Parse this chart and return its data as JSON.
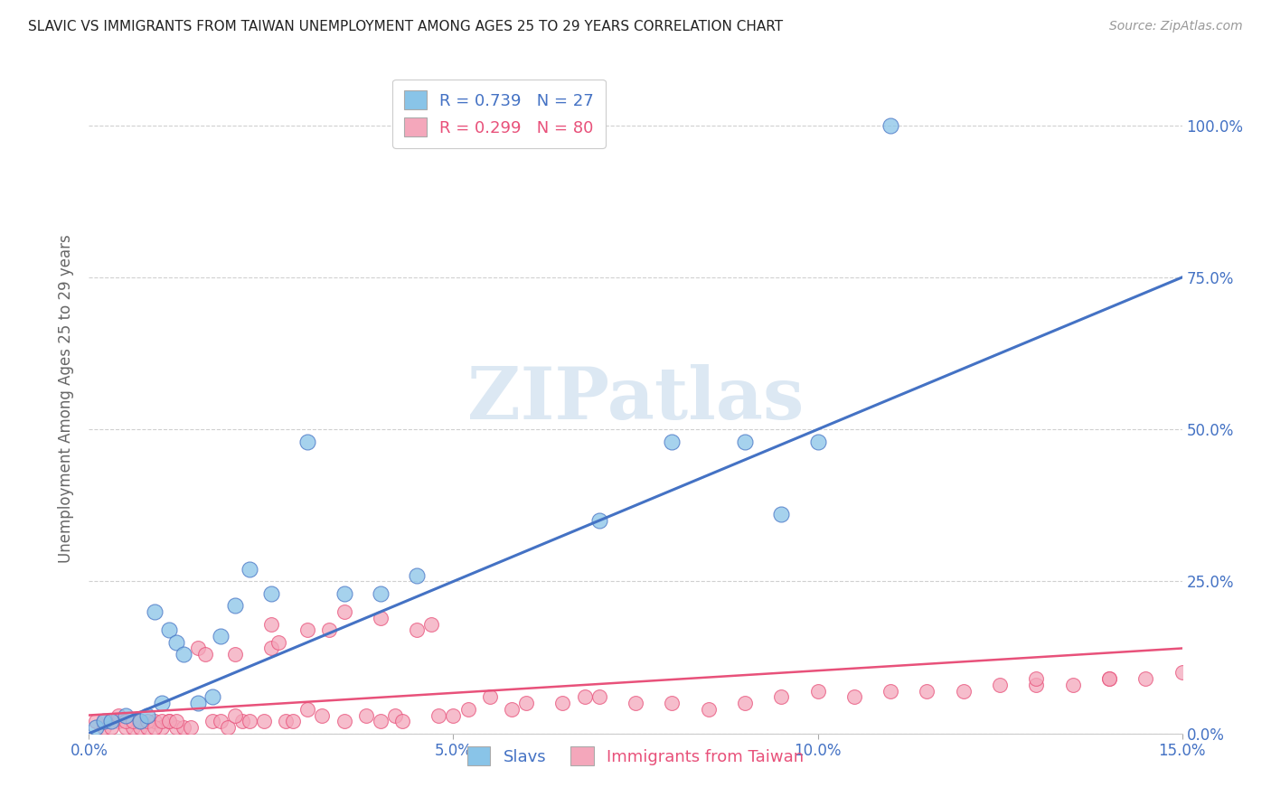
{
  "title": "SLAVIC VS IMMIGRANTS FROM TAIWAN UNEMPLOYMENT AMONG AGES 25 TO 29 YEARS CORRELATION CHART",
  "source": "Source: ZipAtlas.com",
  "ylabel": "Unemployment Among Ages 25 to 29 years",
  "x_min": 0.0,
  "x_max": 0.15,
  "y_min": 0.0,
  "y_max": 1.1,
  "x_ticks": [
    0.0,
    0.05,
    0.1,
    0.15
  ],
  "x_tick_labels": [
    "0.0%",
    "5.0%",
    "10.0%",
    "15.0%"
  ],
  "y_ticks": [
    0.0,
    0.25,
    0.5,
    0.75,
    1.0
  ],
  "y_tick_labels": [
    "0.0%",
    "25.0%",
    "50.0%",
    "75.0%",
    "100.0%"
  ],
  "slavs_color": "#89c4e8",
  "taiwan_color": "#f4a7bb",
  "slavs_line_color": "#4472c4",
  "taiwan_line_color": "#e8517a",
  "slavs_R": 0.739,
  "slavs_N": 27,
  "taiwan_R": 0.299,
  "taiwan_N": 80,
  "legend_label_slavs": "Slavs",
  "legend_label_taiwan": "Immigrants from Taiwan",
  "watermark_text": "ZIPatlas",
  "background_color": "#ffffff",
  "grid_color": "#d0d0d0",
  "slavs_x": [
    0.001,
    0.002,
    0.003,
    0.005,
    0.007,
    0.008,
    0.009,
    0.01,
    0.011,
    0.012,
    0.013,
    0.015,
    0.017,
    0.018,
    0.02,
    0.022,
    0.025,
    0.03,
    0.035,
    0.04,
    0.045,
    0.07,
    0.08,
    0.09,
    0.095,
    0.1,
    0.11
  ],
  "slavs_y": [
    0.01,
    0.02,
    0.02,
    0.03,
    0.02,
    0.03,
    0.2,
    0.05,
    0.17,
    0.15,
    0.13,
    0.05,
    0.06,
    0.16,
    0.21,
    0.27,
    0.23,
    0.48,
    0.23,
    0.23,
    0.26,
    0.35,
    0.48,
    0.48,
    0.36,
    0.48,
    1.0
  ],
  "taiwan_x": [
    0.001,
    0.002,
    0.003,
    0.004,
    0.005,
    0.006,
    0.007,
    0.008,
    0.009,
    0.01,
    0.011,
    0.012,
    0.013,
    0.014,
    0.015,
    0.016,
    0.017,
    0.018,
    0.019,
    0.02,
    0.021,
    0.022,
    0.024,
    0.025,
    0.026,
    0.027,
    0.028,
    0.03,
    0.032,
    0.033,
    0.035,
    0.038,
    0.04,
    0.042,
    0.043,
    0.045,
    0.047,
    0.048,
    0.05,
    0.052,
    0.055,
    0.058,
    0.06,
    0.065,
    0.068,
    0.07,
    0.075,
    0.08,
    0.085,
    0.09,
    0.095,
    0.1,
    0.105,
    0.11,
    0.115,
    0.12,
    0.125,
    0.13,
    0.135,
    0.14,
    0.145,
    0.15,
    0.002,
    0.003,
    0.004,
    0.005,
    0.006,
    0.007,
    0.008,
    0.009,
    0.01,
    0.011,
    0.012,
    0.02,
    0.025,
    0.03,
    0.035,
    0.04,
    0.13,
    0.14
  ],
  "taiwan_y": [
    0.02,
    0.01,
    0.02,
    0.02,
    0.01,
    0.01,
    0.01,
    0.01,
    0.02,
    0.01,
    0.02,
    0.01,
    0.01,
    0.01,
    0.14,
    0.13,
    0.02,
    0.02,
    0.01,
    0.13,
    0.02,
    0.02,
    0.02,
    0.14,
    0.15,
    0.02,
    0.02,
    0.04,
    0.03,
    0.17,
    0.02,
    0.03,
    0.02,
    0.03,
    0.02,
    0.17,
    0.18,
    0.03,
    0.03,
    0.04,
    0.06,
    0.04,
    0.05,
    0.05,
    0.06,
    0.06,
    0.05,
    0.05,
    0.04,
    0.05,
    0.06,
    0.07,
    0.06,
    0.07,
    0.07,
    0.07,
    0.08,
    0.08,
    0.08,
    0.09,
    0.09,
    0.1,
    0.02,
    0.01,
    0.03,
    0.02,
    0.02,
    0.02,
    0.02,
    0.01,
    0.02,
    0.02,
    0.02,
    0.03,
    0.18,
    0.17,
    0.2,
    0.19,
    0.09,
    0.09
  ],
  "slavs_line_x": [
    0.0,
    0.15
  ],
  "slavs_line_y": [
    0.0,
    0.75
  ],
  "taiwan_line_x": [
    0.0,
    0.15
  ],
  "taiwan_line_y": [
    0.03,
    0.14
  ]
}
